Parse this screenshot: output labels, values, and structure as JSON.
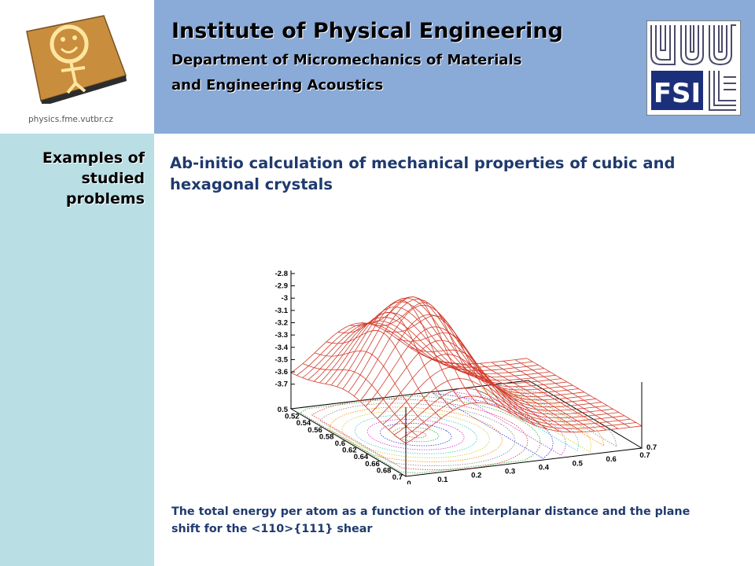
{
  "header": {
    "institute": "Institute of Physical Engineering",
    "department_line1": "Department of Micromechanics of Materials",
    "department_line2": "and Engineering Acoustics",
    "website": "physics.fme.vutbr.cz"
  },
  "sidebar": {
    "line1": "Examples of",
    "line2": "studied",
    "line3": "problems"
  },
  "main": {
    "title": "Ab-initio calculation of mechanical properties of cubic and hexagonal crystals",
    "caption": "The total energy per atom as a function of the interplanar distance and the plane shift for the <110>{111} shear"
  },
  "chart_data": {
    "type": "surface",
    "title": "",
    "z_ticks": [
      "-2.8",
      "-2.9",
      "-3",
      "-3.1",
      "-3.2",
      "-3.3",
      "-3.4",
      "-3.5",
      "-3.6",
      "-3.7"
    ],
    "x_ticks": [
      "0",
      "0.1",
      "0.2",
      "0.3",
      "0.4",
      "0.5",
      "0.6",
      "0.7"
    ],
    "y_ticks": [
      "0.5",
      "0.52",
      "0.54",
      "0.56",
      "0.58",
      "0.6",
      "0.62",
      "0.64",
      "0.66",
      "0.68",
      "0.7"
    ],
    "xlim": [
      0,
      0.7
    ],
    "ylim": [
      0.5,
      0.7
    ],
    "zlim": [
      -3.7,
      -2.8
    ],
    "surface_color": "#d23a2a",
    "contours_projected_on_base": true
  }
}
